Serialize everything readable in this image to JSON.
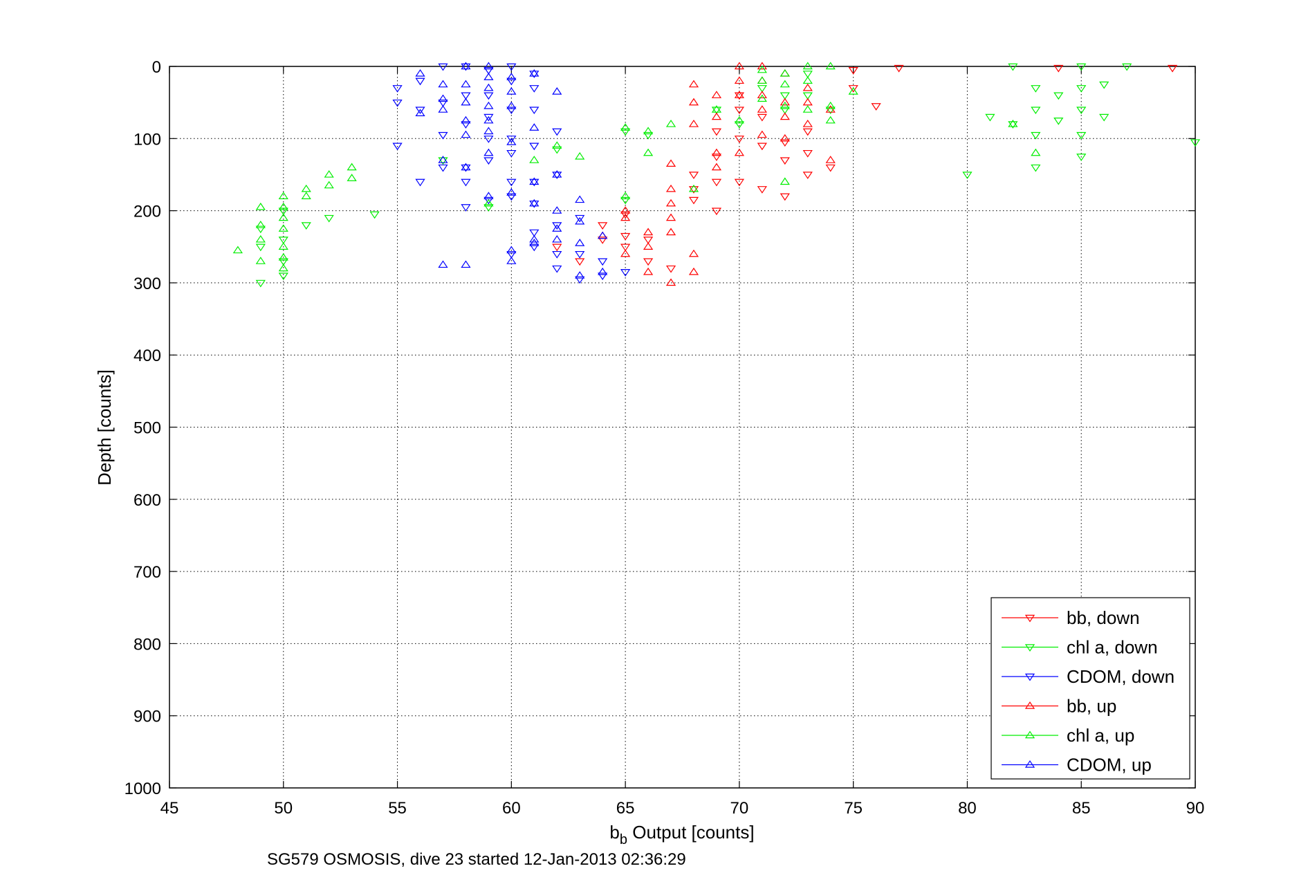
{
  "chart_data": {
    "type": "scatter",
    "title": "",
    "xlabel": {
      "base": "b",
      "subscript": "b",
      "rest": " Output [counts]"
    },
    "ylabel": "Depth [counts]",
    "caption": "SG579 OSMOSIS, dive 23 started 12-Jan-2013 02:36:29",
    "xlim": [
      45,
      90
    ],
    "ylim": [
      0,
      1000
    ],
    "y_reversed": true,
    "grid": true,
    "legend_position": "bottom-right",
    "xticks": [
      45,
      50,
      55,
      60,
      65,
      70,
      75,
      80,
      85,
      90
    ],
    "yticks": [
      0,
      100,
      200,
      300,
      400,
      500,
      600,
      700,
      800,
      900,
      1000
    ],
    "series": [
      {
        "name": "bb, down",
        "color": "#ff0000",
        "marker": "triangle-down",
        "points": [
          [
            65,
            205
          ],
          [
            65,
            235
          ],
          [
            65,
            250
          ],
          [
            66,
            240
          ],
          [
            66,
            270
          ],
          [
            67,
            280
          ],
          [
            68,
            150
          ],
          [
            68,
            170
          ],
          [
            68,
            185
          ],
          [
            69,
            200
          ],
          [
            69,
            160
          ],
          [
            69,
            125
          ],
          [
            69,
            90
          ],
          [
            70,
            100
          ],
          [
            70,
            160
          ],
          [
            70,
            60
          ],
          [
            70,
            40
          ],
          [
            71,
            170
          ],
          [
            71,
            110
          ],
          [
            71,
            70
          ],
          [
            72,
            180
          ],
          [
            72,
            130
          ],
          [
            72,
            105
          ],
          [
            73,
            150
          ],
          [
            73,
            120
          ],
          [
            73,
            90
          ],
          [
            74,
            140
          ],
          [
            75,
            5
          ],
          [
            75,
            30
          ],
          [
            76,
            55
          ],
          [
            77,
            2
          ],
          [
            84,
            2
          ],
          [
            89,
            2
          ],
          [
            62,
            250
          ],
          [
            63,
            270
          ],
          [
            64,
            220
          ],
          [
            64,
            240
          ]
        ]
      },
      {
        "name": "chl a, down",
        "color": "#00ee00",
        "marker": "triangle-down",
        "points": [
          [
            49,
            225
          ],
          [
            49,
            250
          ],
          [
            49,
            300
          ],
          [
            50,
            200
          ],
          [
            50,
            240
          ],
          [
            50,
            270
          ],
          [
            50,
            290
          ],
          [
            51,
            220
          ],
          [
            52,
            210
          ],
          [
            54,
            205
          ],
          [
            57,
            130
          ],
          [
            59,
            195
          ],
          [
            62,
            115
          ],
          [
            65,
            90
          ],
          [
            65,
            185
          ],
          [
            66,
            95
          ],
          [
            69,
            60
          ],
          [
            70,
            80
          ],
          [
            71,
            30
          ],
          [
            72,
            40
          ],
          [
            72,
            60
          ],
          [
            73,
            10
          ],
          [
            73,
            40
          ],
          [
            74,
            60
          ],
          [
            80,
            150
          ],
          [
            81,
            70
          ],
          [
            82,
            0
          ],
          [
            82,
            80
          ],
          [
            83,
            30
          ],
          [
            83,
            60
          ],
          [
            83,
            95
          ],
          [
            83,
            140
          ],
          [
            84,
            40
          ],
          [
            84,
            75
          ],
          [
            85,
            0
          ],
          [
            85,
            30
          ],
          [
            85,
            60
          ],
          [
            85,
            95
          ],
          [
            85,
            125
          ],
          [
            86,
            25
          ],
          [
            86,
            70
          ],
          [
            87,
            0
          ],
          [
            90,
            105
          ]
        ]
      },
      {
        "name": "CDOM, down",
        "color": "#0000ff",
        "marker": "triangle-down",
        "points": [
          [
            55,
            30
          ],
          [
            55,
            50
          ],
          [
            55,
            110
          ],
          [
            56,
            20
          ],
          [
            56,
            60
          ],
          [
            56,
            160
          ],
          [
            57,
            0
          ],
          [
            57,
            50
          ],
          [
            57,
            95
          ],
          [
            57,
            140
          ],
          [
            58,
            0
          ],
          [
            58,
            40
          ],
          [
            58,
            80
          ],
          [
            58,
            140
          ],
          [
            58,
            160
          ],
          [
            58,
            195
          ],
          [
            59,
            5
          ],
          [
            59,
            40
          ],
          [
            59,
            70
          ],
          [
            59,
            100
          ],
          [
            59,
            130
          ],
          [
            59,
            185
          ],
          [
            60,
            0
          ],
          [
            60,
            20
          ],
          [
            60,
            60
          ],
          [
            60,
            100
          ],
          [
            60,
            120
          ],
          [
            60,
            160
          ],
          [
            60,
            180
          ],
          [
            60,
            260
          ],
          [
            61,
            10
          ],
          [
            61,
            30
          ],
          [
            61,
            60
          ],
          [
            61,
            110
          ],
          [
            61,
            160
          ],
          [
            61,
            190
          ],
          [
            61,
            230
          ],
          [
            61,
            250
          ],
          [
            62,
            90
          ],
          [
            62,
            150
          ],
          [
            62,
            220
          ],
          [
            62,
            260
          ],
          [
            62,
            280
          ],
          [
            63,
            210
          ],
          [
            63,
            260
          ],
          [
            63,
            295
          ],
          [
            64,
            270
          ],
          [
            64,
            290
          ],
          [
            65,
            285
          ]
        ]
      },
      {
        "name": "bb, up",
        "color": "#ff0000",
        "marker": "triangle-up",
        "points": [
          [
            64,
            235
          ],
          [
            65,
            200
          ],
          [
            65,
            210
          ],
          [
            65,
            260
          ],
          [
            66,
            230
          ],
          [
            66,
            250
          ],
          [
            66,
            285
          ],
          [
            67,
            135
          ],
          [
            67,
            170
          ],
          [
            67,
            190
          ],
          [
            67,
            210
          ],
          [
            67,
            230
          ],
          [
            67,
            300
          ],
          [
            68,
            25
          ],
          [
            68,
            50
          ],
          [
            68,
            80
          ],
          [
            68,
            260
          ],
          [
            68,
            285
          ],
          [
            69,
            40
          ],
          [
            69,
            70
          ],
          [
            69,
            120
          ],
          [
            69,
            140
          ],
          [
            70,
            0
          ],
          [
            70,
            20
          ],
          [
            70,
            40
          ],
          [
            70,
            120
          ],
          [
            71,
            0
          ],
          [
            71,
            20
          ],
          [
            71,
            40
          ],
          [
            71,
            60
          ],
          [
            71,
            95
          ],
          [
            72,
            10
          ],
          [
            72,
            50
          ],
          [
            72,
            70
          ],
          [
            72,
            100
          ],
          [
            73,
            30
          ],
          [
            73,
            50
          ],
          [
            73,
            80
          ],
          [
            74,
            60
          ],
          [
            74,
            130
          ]
        ]
      },
      {
        "name": "chl a, up",
        "color": "#00ee00",
        "marker": "triangle-up",
        "points": [
          [
            48,
            255
          ],
          [
            49,
            195
          ],
          [
            49,
            220
          ],
          [
            49,
            240
          ],
          [
            49,
            270
          ],
          [
            50,
            180
          ],
          [
            50,
            195
          ],
          [
            50,
            210
          ],
          [
            50,
            225
          ],
          [
            50,
            250
          ],
          [
            50,
            265
          ],
          [
            50,
            280
          ],
          [
            51,
            170
          ],
          [
            51,
            180
          ],
          [
            52,
            150
          ],
          [
            52,
            165
          ],
          [
            53,
            140
          ],
          [
            53,
            155
          ],
          [
            59,
            190
          ],
          [
            61,
            130
          ],
          [
            62,
            110
          ],
          [
            63,
            125
          ],
          [
            65,
            85
          ],
          [
            65,
            180
          ],
          [
            66,
            90
          ],
          [
            66,
            120
          ],
          [
            67,
            80
          ],
          [
            68,
            170
          ],
          [
            69,
            60
          ],
          [
            70,
            75
          ],
          [
            71,
            5
          ],
          [
            71,
            20
          ],
          [
            71,
            45
          ],
          [
            72,
            10
          ],
          [
            72,
            25
          ],
          [
            72,
            55
          ],
          [
            72,
            160
          ],
          [
            73,
            0
          ],
          [
            73,
            20
          ],
          [
            73,
            60
          ],
          [
            74,
            0
          ],
          [
            74,
            55
          ],
          [
            74,
            75
          ],
          [
            75,
            35
          ],
          [
            82,
            80
          ],
          [
            83,
            120
          ]
        ]
      },
      {
        "name": "CDOM, up",
        "color": "#0000ff",
        "marker": "triangle-up",
        "points": [
          [
            56,
            10
          ],
          [
            56,
            65
          ],
          [
            57,
            25
          ],
          [
            57,
            45
          ],
          [
            57,
            60
          ],
          [
            57,
            130
          ],
          [
            57,
            275
          ],
          [
            58,
            0
          ],
          [
            58,
            25
          ],
          [
            58,
            50
          ],
          [
            58,
            75
          ],
          [
            58,
            95
          ],
          [
            58,
            140
          ],
          [
            58,
            275
          ],
          [
            59,
            0
          ],
          [
            59,
            15
          ],
          [
            59,
            30
          ],
          [
            59,
            55
          ],
          [
            59,
            75
          ],
          [
            59,
            90
          ],
          [
            59,
            120
          ],
          [
            59,
            180
          ],
          [
            60,
            15
          ],
          [
            60,
            35
          ],
          [
            60,
            55
          ],
          [
            60,
            105
          ],
          [
            60,
            175
          ],
          [
            60,
            255
          ],
          [
            60,
            270
          ],
          [
            61,
            10
          ],
          [
            61,
            85
          ],
          [
            61,
            160
          ],
          [
            61,
            190
          ],
          [
            61,
            240
          ],
          [
            61,
            245
          ],
          [
            62,
            35
          ],
          [
            62,
            150
          ],
          [
            62,
            200
          ],
          [
            62,
            225
          ],
          [
            62,
            240
          ],
          [
            63,
            185
          ],
          [
            63,
            215
          ],
          [
            63,
            245
          ],
          [
            63,
            290
          ],
          [
            64,
            235
          ],
          [
            64,
            285
          ]
        ]
      }
    ]
  }
}
